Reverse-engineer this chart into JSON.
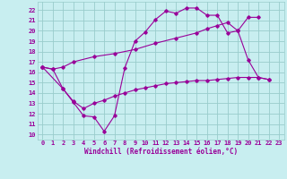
{
  "title": "",
  "xlabel": "Windchill (Refroidissement éolien,°C)",
  "bg_color": "#c8eef0",
  "grid_color": "#99cccc",
  "line_color": "#990099",
  "xlim": [
    -0.5,
    23.5
  ],
  "ylim": [
    9.5,
    22.8
  ],
  "yticks": [
    10,
    11,
    12,
    13,
    14,
    15,
    16,
    17,
    18,
    19,
    20,
    21,
    22
  ],
  "xticks": [
    0,
    1,
    2,
    3,
    4,
    5,
    6,
    7,
    8,
    9,
    10,
    11,
    12,
    13,
    14,
    15,
    16,
    17,
    18,
    19,
    20,
    21,
    22,
    23
  ],
  "tick_fontsize": 5.0,
  "xlabel_fontsize": 5.5,
  "series": [
    {
      "x": [
        0,
        1,
        2,
        3,
        4,
        5,
        6,
        7,
        8,
        9,
        10,
        11,
        12,
        13,
        14,
        15,
        16,
        17,
        18,
        19,
        20,
        21
      ],
      "y": [
        16.5,
        16.3,
        14.4,
        13.1,
        11.8,
        11.7,
        10.3,
        11.8,
        16.4,
        19.0,
        19.9,
        21.1,
        21.9,
        21.7,
        22.2,
        22.2,
        21.5,
        21.5,
        19.8,
        20.0,
        21.3,
        21.3
      ]
    },
    {
      "x": [
        0,
        1,
        2,
        3,
        5,
        7,
        9,
        11,
        13,
        15,
        16,
        17,
        18,
        19,
        20,
        21,
        22
      ],
      "y": [
        16.5,
        16.3,
        16.5,
        17.0,
        17.5,
        17.8,
        18.2,
        18.8,
        19.3,
        19.8,
        20.2,
        20.5,
        20.8,
        20.0,
        17.2,
        15.5,
        15.3
      ]
    },
    {
      "x": [
        0,
        2,
        3,
        4,
        5,
        6,
        7,
        8,
        9,
        10,
        11,
        12,
        13,
        14,
        15,
        16,
        17,
        18,
        19,
        20,
        21,
        22
      ],
      "y": [
        16.5,
        14.4,
        13.2,
        12.5,
        13.0,
        13.3,
        13.7,
        14.0,
        14.3,
        14.5,
        14.7,
        14.9,
        15.0,
        15.1,
        15.2,
        15.2,
        15.3,
        15.4,
        15.5,
        15.5,
        15.5,
        15.3
      ]
    }
  ]
}
